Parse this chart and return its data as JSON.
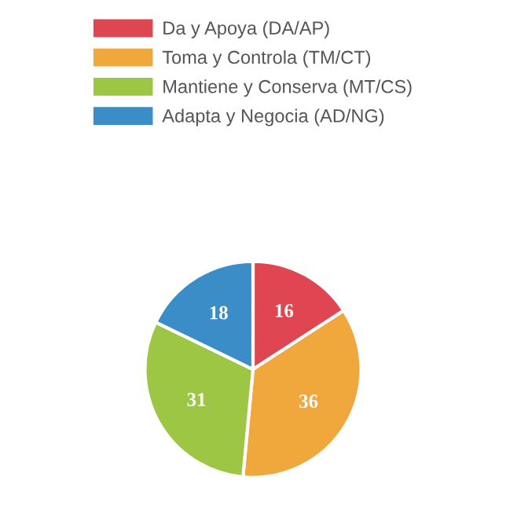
{
  "chart_data": {
    "type": "pie",
    "categories": [
      "Da y Apoya (DA/AP)",
      "Toma y Controla (TM/CT)",
      "Mantiene y Conserva (MT/CS)",
      "Adapta y Negocia (AD/NG)"
    ],
    "values": [
      16,
      36,
      31,
      18
    ],
    "colors": [
      "#e04651",
      "#f0a83c",
      "#9dc644",
      "#3a8dc6"
    ],
    "data_labels": true,
    "legend": "top"
  }
}
